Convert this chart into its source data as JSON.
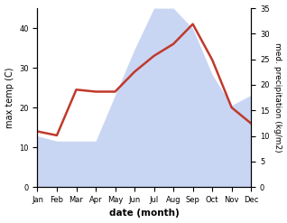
{
  "months": [
    "Jan",
    "Feb",
    "Mar",
    "Apr",
    "May",
    "Jun",
    "Jul",
    "Aug",
    "Sep",
    "Oct",
    "Nov",
    "Dec"
  ],
  "temp": [
    14,
    13,
    24.5,
    24,
    24,
    29,
    33,
    36,
    41,
    32,
    20,
    16
  ],
  "precip": [
    10,
    9,
    9,
    9,
    18,
    27,
    35,
    35,
    31,
    22,
    16,
    18
  ],
  "temp_color": "#c0392b",
  "precip_color": "#b8c9f0",
  "precip_fill_alpha": 0.75,
  "xlabel": "date (month)",
  "ylabel_left": "max temp (C)",
  "ylabel_right": "med. precipitation (kg/m2)",
  "ylim_left": [
    0,
    45
  ],
  "ylim_right": [
    0,
    35
  ],
  "yticks_left": [
    0,
    10,
    20,
    30,
    40
  ],
  "yticks_right": [
    0,
    5,
    10,
    15,
    20,
    25,
    30,
    35
  ],
  "bg_color": "#ffffff",
  "line_width": 1.8
}
